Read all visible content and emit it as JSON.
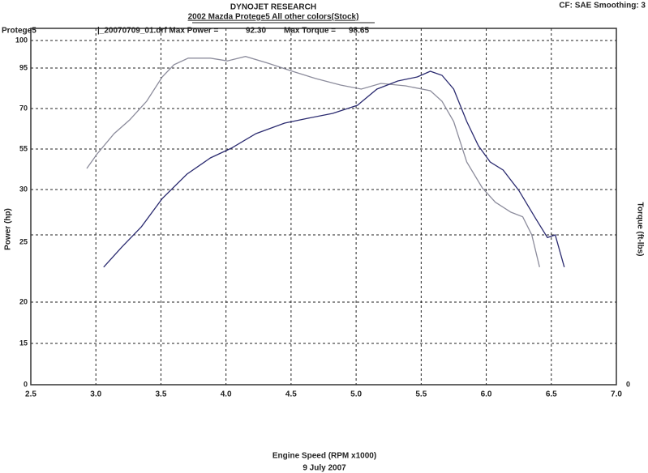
{
  "chart_data": {
    "type": "line",
    "title": "DYNOJET RESEARCH",
    "subtitle": "2002 Mazda Protege5  All other colors(Stock)",
    "corner_note": "CF: SAE  Smoothing: 3",
    "run_name": "Protege5",
    "annotations": [
      "|_20070709_01.drf Max Power =",
      "92.30",
      "Max Torque =",
      "98.65"
    ],
    "xlabel": "Engine Speed (RPM x1000)",
    "ylabel": "Power (hp)",
    "y2label": "Torque (ft-lbs)",
    "date": "9 July 2007",
    "xlim": [
      2.5,
      7.0
    ],
    "xticks": [
      2.5,
      {
        "value": 3,
        "label": "3.0"
      },
      3.5,
      {
        "value": 4,
        "label": "4.0"
      },
      4.5,
      {
        "value": 5,
        "label": "5.0"
      },
      5.5,
      {
        "value": 6,
        "label": "6.0"
      },
      6.5,
      {
        "value": 7,
        "label": "7.0"
      }
    ],
    "ylim": [
      0,
      100
    ],
    "yticks": [
      0,
      15,
      20,
      25,
      30,
      55,
      70,
      95,
      100
    ],
    "y2ticks": [
      0
    ],
    "grid": true,
    "series": [
      {
        "color": "#8c8c9c",
        "x": [
          2.93,
          3.01,
          3.14,
          3.26,
          3.39,
          3.51,
          3.6,
          3.71,
          3.88,
          4.01,
          4.15,
          4.32,
          4.51,
          4.69,
          4.88,
          5.04,
          5.19,
          5.38,
          5.57,
          5.66,
          5.75,
          5.85,
          5.97,
          6.07,
          6.19,
          6.28,
          6.35,
          6.41
        ],
        "values": [
          43,
          52,
          60.7,
          65.8,
          74.5,
          89.5,
          95.6,
          96.8,
          96.8,
          96.3,
          97.1,
          95.9,
          93,
          88.5,
          84.5,
          82,
          85.5,
          84,
          81,
          74.5,
          65.2,
          47,
          31,
          28.6,
          27.5,
          27,
          25,
          22.6
        ]
      },
      {
        "color": "#2b2b70",
        "x": [
          3.06,
          3.2,
          3.35,
          3.51,
          3.7,
          3.88,
          4.04,
          4.23,
          4.45,
          4.63,
          4.82,
          5.01,
          5.16,
          5.32,
          5.47,
          5.57,
          5.66,
          5.75,
          5.85,
          5.94,
          6.03,
          6.13,
          6.25,
          6.38,
          6.47,
          6.53,
          6.6
        ],
        "values": [
          22.6,
          24.1,
          25.9,
          29,
          39.5,
          49.5,
          55.3,
          60.7,
          64.6,
          66.4,
          68.2,
          72,
          82,
          87,
          89.5,
          93,
          90.5,
          82,
          65.2,
          56.2,
          47,
          42,
          29.9,
          26.8,
          24.8,
          25,
          22.6
        ]
      }
    ]
  }
}
